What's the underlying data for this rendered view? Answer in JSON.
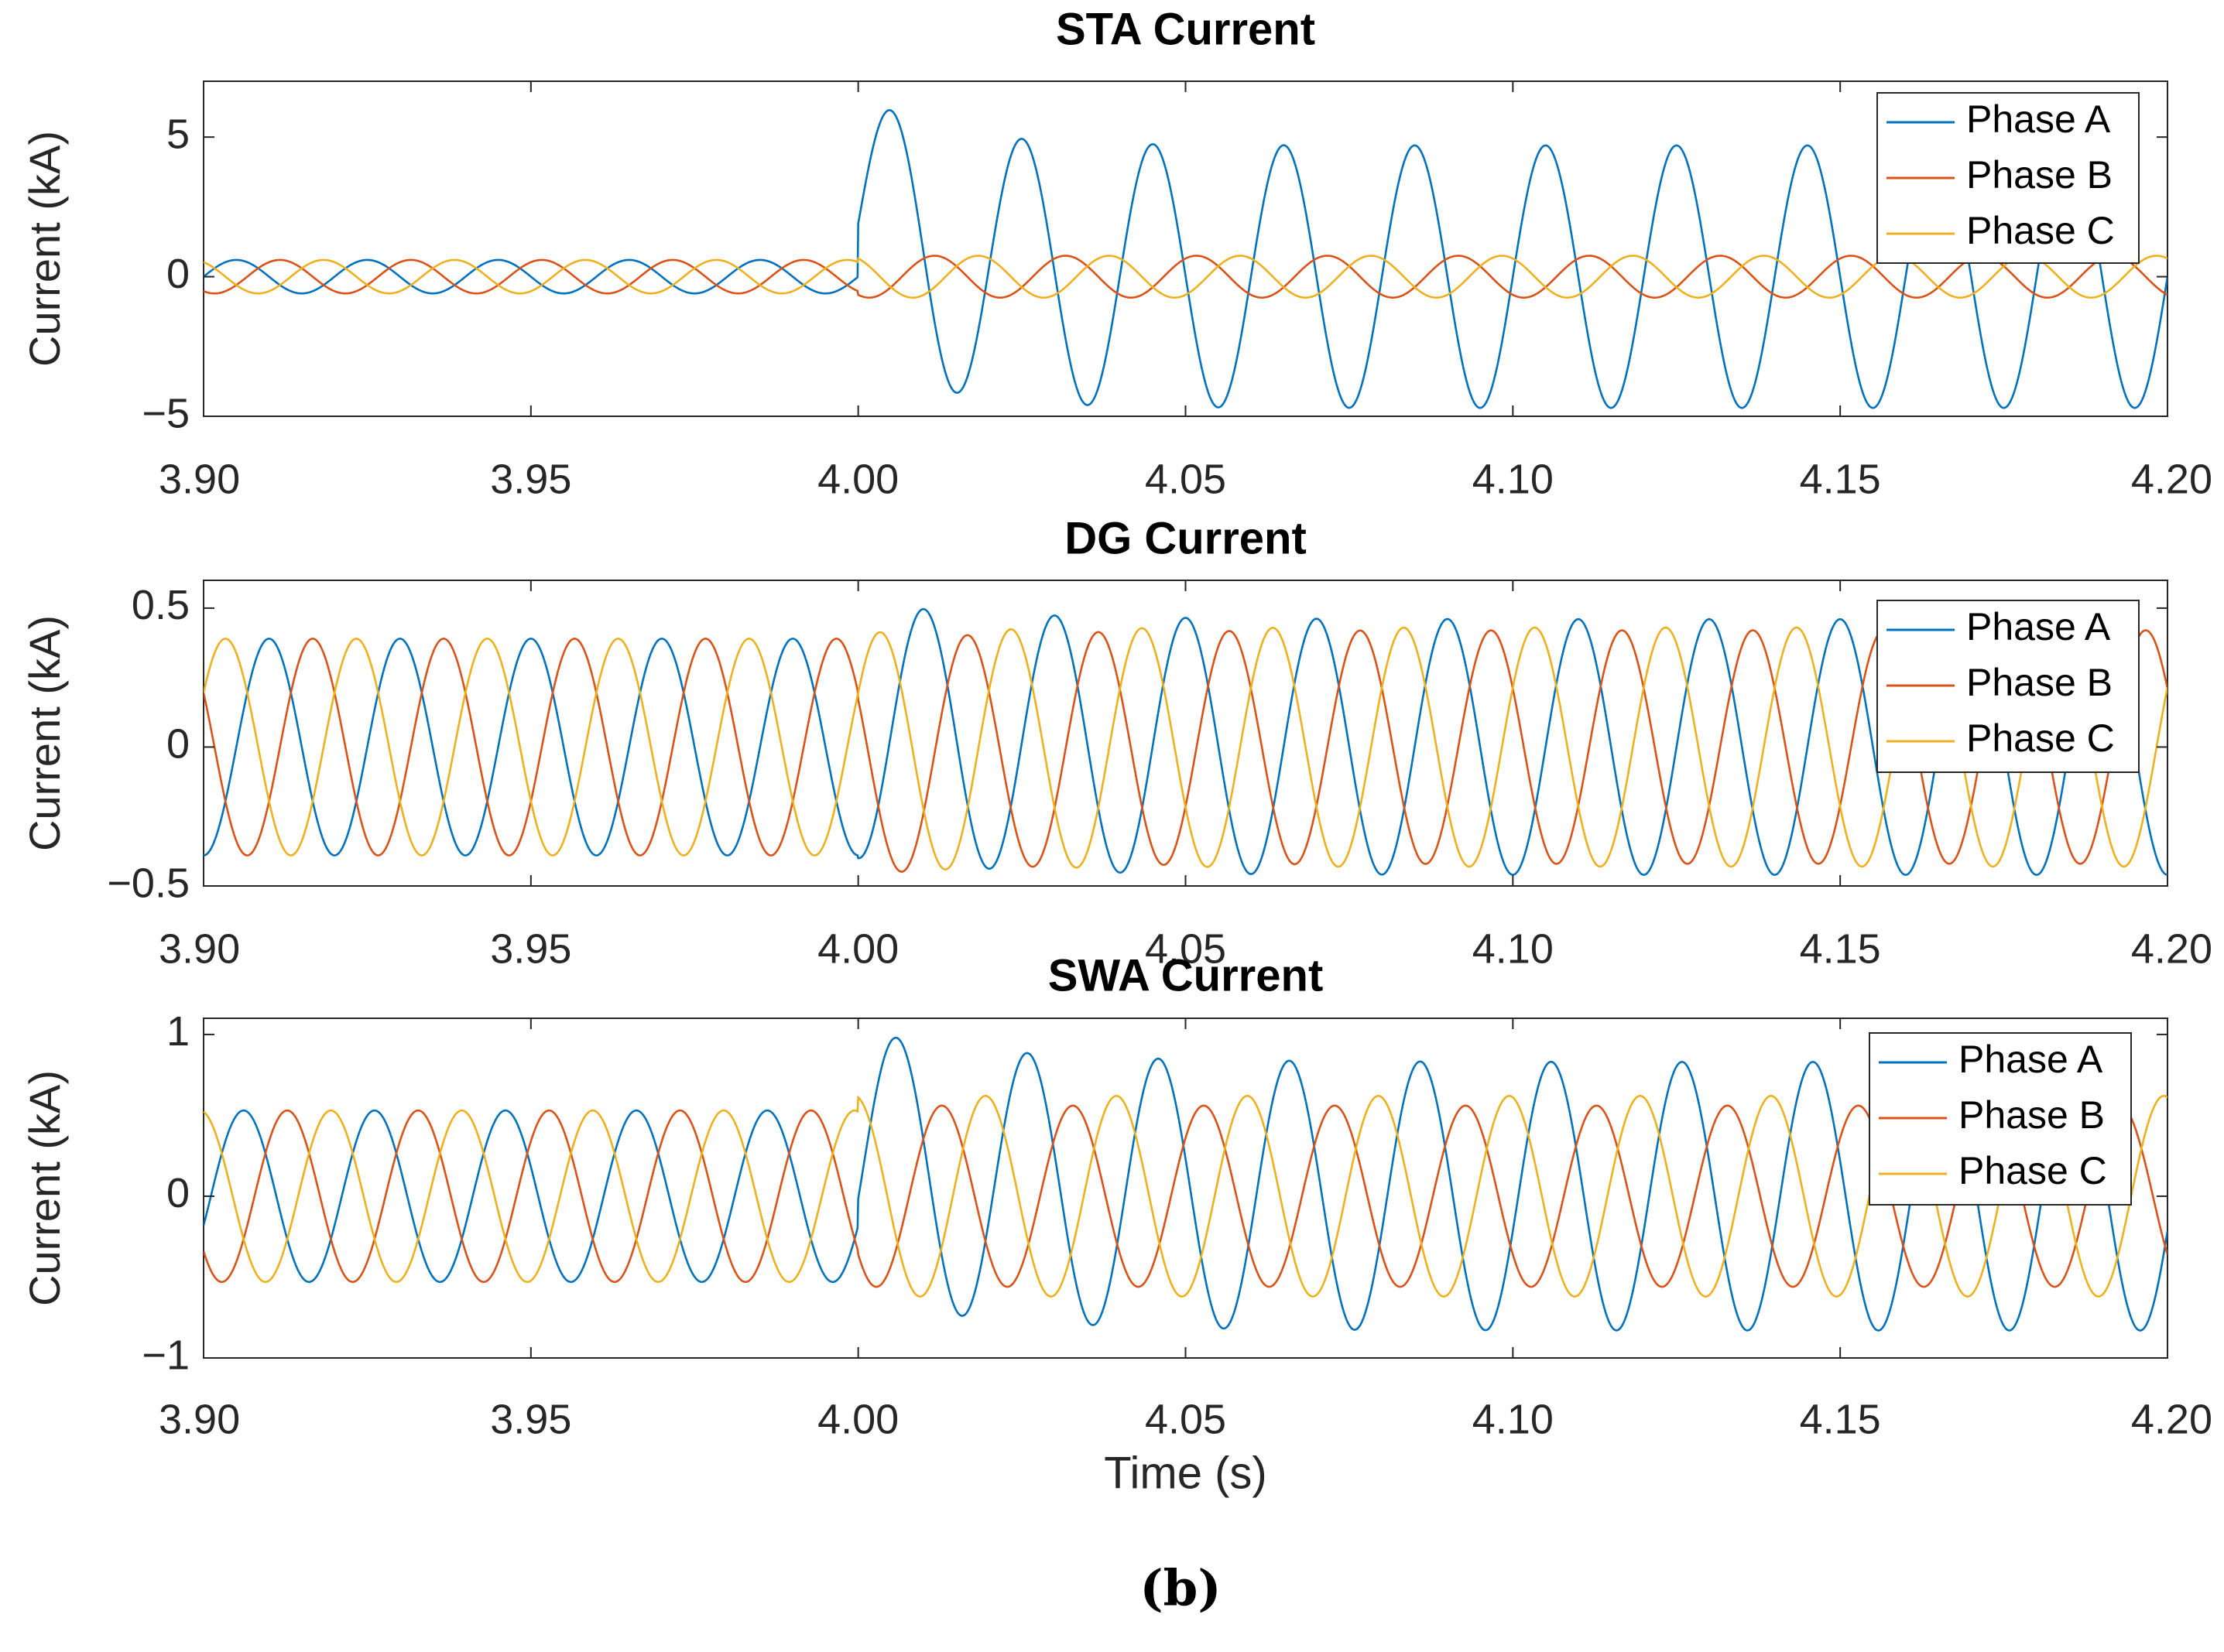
{
  "figure": {
    "caption": "(b)"
  },
  "colors": {
    "phase_a": "#0072BD",
    "phase_b": "#D95319",
    "phase_c": "#EDB120",
    "axis": "#262626"
  },
  "chart_data": [
    {
      "type": "line",
      "title": "STA Current",
      "xlabel": "",
      "ylabel": "Current (kA)",
      "xlim": [
        3.9,
        4.2
      ],
      "ylim": [
        -5,
        7
      ],
      "xticks": [
        3.9,
        3.95,
        4.0,
        4.05,
        4.1,
        4.15,
        4.2
      ],
      "xtick_labels": [
        "3.90",
        "3.95",
        "4.00",
        "4.05",
        "4.10",
        "4.15",
        "4.20"
      ],
      "yticks": [
        -5,
        0,
        5
      ],
      "ytick_labels": [
        "−5",
        "0",
        "5"
      ],
      "legend": {
        "position": "top-right",
        "entries": [
          "Phase A",
          "Phase B",
          "Phase C"
        ]
      },
      "frequency_hz": 50,
      "fault_time_s": 4.0,
      "series": [
        {
          "name": "Phase A",
          "color_key": "phase_a",
          "pre_fault_amplitude": 0.6,
          "phase_deg": 0,
          "post_fault_amplitude": 4.7,
          "post_phase_deg": 0,
          "dc_offset_initial": 1.9,
          "dc_decay_s": 0.012
        },
        {
          "name": "Phase B",
          "color_key": "phase_b",
          "pre_fault_amplitude": 0.6,
          "phase_deg": -120,
          "post_fault_amplitude": 0.75,
          "post_phase_deg": -120,
          "dc_offset_initial": 0,
          "dc_decay_s": 0.01
        },
        {
          "name": "Phase C",
          "color_key": "phase_c",
          "pre_fault_amplitude": 0.6,
          "phase_deg": 120,
          "post_fault_amplitude": 0.75,
          "post_phase_deg": 120,
          "dc_offset_initial": 0,
          "dc_decay_s": 0.01
        }
      ]
    },
    {
      "type": "line",
      "title": "DG Current",
      "xlabel": "",
      "ylabel": "Current (kA)",
      "xlim": [
        3.9,
        4.2
      ],
      "ylim": [
        -0.5,
        0.6
      ],
      "xticks": [
        3.9,
        3.95,
        4.0,
        4.05,
        4.1,
        4.15,
        4.2
      ],
      "xtick_labels": [
        "3.90",
        "3.95",
        "4.00",
        "4.05",
        "4.10",
        "4.15",
        "4.20"
      ],
      "yticks": [
        -0.5,
        0,
        0.5
      ],
      "ytick_labels": [
        "−0.5",
        "0",
        "0.5"
      ],
      "legend": {
        "position": "top-right",
        "entries": [
          "Phase A",
          "Phase B",
          "Phase C"
        ]
      },
      "frequency_hz": 50,
      "fault_time_s": 4.0,
      "series": [
        {
          "name": "Phase A",
          "color_key": "phase_a",
          "pre_fault_amplitude": 0.39,
          "phase_deg": -90,
          "post_fault_amplitude": 0.46,
          "post_phase_deg": -90,
          "dc_offset_initial": 0.06,
          "dc_decay_s": 0.02
        },
        {
          "name": "Phase B",
          "color_key": "phase_b",
          "pre_fault_amplitude": 0.39,
          "phase_deg": 150,
          "post_fault_amplitude": 0.42,
          "post_phase_deg": 150,
          "dc_offset_initial": -0.04,
          "dc_decay_s": 0.02
        },
        {
          "name": "Phase C",
          "color_key": "phase_c",
          "pre_fault_amplitude": 0.39,
          "phase_deg": 30,
          "post_fault_amplitude": 0.43,
          "post_phase_deg": 30,
          "dc_offset_initial": -0.02,
          "dc_decay_s": 0.02
        }
      ]
    },
    {
      "type": "line",
      "title": "SWA Current",
      "xlabel": "Time (s)",
      "ylabel": "Current (kA)",
      "xlim": [
        3.9,
        4.2
      ],
      "ylim": [
        -1,
        1.1
      ],
      "xticks": [
        3.9,
        3.95,
        4.0,
        4.05,
        4.1,
        4.15,
        4.2
      ],
      "xtick_labels": [
        "3.90",
        "3.95",
        "4.00",
        "4.05",
        "4.10",
        "4.15",
        "4.20"
      ],
      "yticks": [
        -1,
        0,
        1
      ],
      "ytick_labels": [
        "−1",
        "0",
        "1"
      ],
      "legend": {
        "position": "top-right",
        "entries": [
          "Phase A",
          "Phase B",
          "Phase C"
        ]
      },
      "frequency_hz": 50,
      "fault_time_s": 4.0,
      "series": [
        {
          "name": "Phase A",
          "color_key": "phase_a",
          "pre_fault_amplitude": 0.53,
          "phase_deg": -20,
          "post_fault_amplitude": 0.83,
          "post_phase_deg": -15,
          "dc_offset_initial": 0.2,
          "dc_decay_s": 0.02
        },
        {
          "name": "Phase B",
          "color_key": "phase_b",
          "pre_fault_amplitude": 0.53,
          "phase_deg": -140,
          "post_fault_amplitude": 0.56,
          "post_phase_deg": -140,
          "dc_offset_initial": 0,
          "dc_decay_s": 0.02
        },
        {
          "name": "Phase C",
          "color_key": "phase_c",
          "pre_fault_amplitude": 0.53,
          "phase_deg": 100,
          "post_fault_amplitude": 0.62,
          "post_phase_deg": 100,
          "dc_offset_initial": 0,
          "dc_decay_s": 0.02
        }
      ]
    }
  ]
}
